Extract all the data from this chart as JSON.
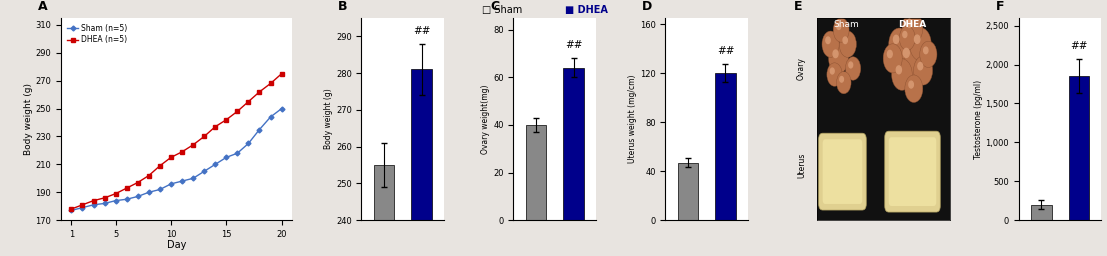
{
  "panel_A": {
    "label": "A",
    "days": [
      1,
      2,
      3,
      4,
      5,
      6,
      7,
      8,
      9,
      10,
      11,
      12,
      13,
      14,
      15,
      16,
      17,
      18,
      19,
      20
    ],
    "sham": [
      177,
      179,
      181,
      182,
      184,
      185,
      187,
      190,
      192,
      196,
      198,
      200,
      205,
      210,
      215,
      218,
      225,
      235,
      244,
      250
    ],
    "dhea": [
      178,
      181,
      184,
      186,
      189,
      193,
      197,
      202,
      209,
      215,
      219,
      224,
      230,
      237,
      242,
      248,
      255,
      262,
      268,
      275
    ],
    "sham_color": "#4472C4",
    "dhea_color": "#CC0000",
    "ylabel": "Body weight (g)",
    "xlabel": "Day",
    "ylim": [
      170,
      315
    ],
    "yticks": [
      170,
      190,
      210,
      230,
      250,
      270,
      290,
      310
    ],
    "xticks": [
      1,
      5,
      10,
      15,
      20
    ],
    "legend_sham": "Sham (n=5)",
    "legend_dhea": "DHEA (n=5)"
  },
  "panel_B": {
    "label": "B",
    "sham_val": 255,
    "dhea_val": 281,
    "sham_err": 6,
    "dhea_err": 7,
    "ylabel": "Body weight (g)",
    "ylim": [
      240,
      295
    ],
    "yticks": [
      240,
      250,
      260,
      270,
      280,
      290
    ],
    "ytick_labels": [
      "240",
      "250",
      "260",
      "270",
      "280",
      "290"
    ],
    "sham_color": "#888888",
    "dhea_color": "#00008B",
    "annotation": "##"
  },
  "panel_C": {
    "label": "C",
    "sham_val": 40,
    "dhea_val": 64,
    "sham_err": 3,
    "dhea_err": 4,
    "ylabel": "Ovary weight(mg)",
    "ylim": [
      0,
      85
    ],
    "yticks": [
      0,
      20,
      40,
      60,
      80
    ],
    "ytick_labels": [
      "0",
      "20",
      "40",
      "60",
      "80"
    ],
    "sham_color": "#888888",
    "dhea_color": "#00008B",
    "annotation": "##"
  },
  "panel_D": {
    "label": "D",
    "sham_val": 47,
    "dhea_val": 120,
    "sham_err": 4,
    "dhea_err": 7,
    "ylabel": "Uterus weight (mg/cm)",
    "ylim": [
      0,
      165
    ],
    "yticks": [
      0,
      40,
      80,
      120,
      160
    ],
    "ytick_labels": [
      "0",
      "40",
      "80",
      "120",
      "160"
    ],
    "sham_color": "#888888",
    "dhea_color": "#00008B",
    "annotation": "##"
  },
  "panel_E": {
    "label": "E",
    "sham_label": "Sham",
    "dhea_label": "DHEA",
    "ovary_label": "Ovary",
    "uterus_label": "Uterus",
    "bg_color": "#111111",
    "ovary_color": "#b8724a",
    "uterus_color": "#e0d090"
  },
  "panel_F": {
    "label": "F",
    "sham_val": 200,
    "dhea_val": 1850,
    "sham_err": 60,
    "dhea_err": 220,
    "ylabel": "Testosterone (pg/ml)",
    "ylim": [
      0,
      2600
    ],
    "yticks": [
      0,
      500,
      1000,
      1500,
      2000,
      2500
    ],
    "ytick_labels": [
      "0",
      "500",
      "1,000",
      "1,500",
      "2,000",
      "2,500"
    ],
    "sham_color": "#888888",
    "dhea_color": "#00008B",
    "annotation": "##"
  },
  "legend_sham_color": "#888888",
  "legend_dhea_color": "#00008B",
  "bg_color": "#e8e4e0",
  "inner_bg": "#ffffff"
}
